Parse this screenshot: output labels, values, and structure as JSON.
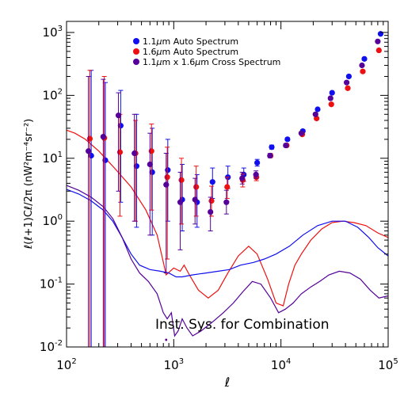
{
  "chart_data": {
    "type": "scatter",
    "xscale": "log",
    "yscale": "log",
    "xlim": [
      100,
      100000
    ],
    "ylim": [
      0.01,
      1500
    ],
    "xlabel": "ℓ",
    "ylabel": "ℓ(ℓ+1)Cℓ/2π   (nW²m⁻⁴sr⁻²)",
    "x_ticks": [
      {
        "value": 100,
        "base": "10",
        "exp": "2"
      },
      {
        "value": 1000,
        "base": "10",
        "exp": "3"
      },
      {
        "value": 10000,
        "base": "10",
        "exp": "4"
      },
      {
        "value": 100000,
        "base": "10",
        "exp": "5"
      }
    ],
    "y_ticks": [
      {
        "value": 0.01,
        "base": "10",
        "exp": "-2"
      },
      {
        "value": 0.1,
        "base": "10",
        "exp": "-1"
      },
      {
        "value": 1,
        "base": "10",
        "exp": "0"
      },
      {
        "value": 10,
        "base": "10",
        "exp": "1"
      },
      {
        "value": 100,
        "base": "10",
        "exp": "2"
      },
      {
        "value": 1000,
        "base": "10",
        "exp": "3"
      }
    ],
    "annotation": "Inst. Sys. for Combination",
    "legend": {
      "placement": "top-left",
      "entries": [
        {
          "label_pre": "1.1",
          "mu": "μ",
          "label_post": "m Auto Spectrum",
          "color": "#1010ee"
        },
        {
          "label_pre": "1.6",
          "mu": "μ",
          "label_post": "m Auto Spectrum",
          "color": "#ee1010"
        },
        {
          "label_pre": "1.1",
          "mu": "μ",
          "label_post": "m x 1.6",
          "mu2": "μ",
          "label_post2": "m Cross Spectrum",
          "color": "#550099"
        }
      ]
    },
    "series": [
      {
        "name": "1.1μm Auto Spectrum",
        "color": "#1010ee",
        "points": [
          {
            "x": 170,
            "y": 11,
            "lo": 0.01,
            "hi": 250
          },
          {
            "x": 230,
            "y": 9.3,
            "lo": 0.01,
            "hi": 160
          },
          {
            "x": 320,
            "y": 33,
            "lo": 2,
            "hi": 120
          },
          {
            "x": 450,
            "y": 7.5,
            "lo": 0.8,
            "hi": 50
          },
          {
            "x": 630,
            "y": 6.0,
            "lo": 0.6,
            "hi": 30
          },
          {
            "x": 880,
            "y": 6.5,
            "lo": 1.0,
            "hi": 20
          },
          {
            "x": 1200,
            "y": 2.2,
            "lo": 0.7,
            "hi": 8
          },
          {
            "x": 1650,
            "y": 2.0,
            "lo": 0.8,
            "hi": 5.5
          },
          {
            "x": 2300,
            "y": 4.2,
            "lo": 2.3,
            "hi": 7
          },
          {
            "x": 3200,
            "y": 5.0,
            "lo": 3.3,
            "hi": 7.5
          },
          {
            "x": 4500,
            "y": 5.5,
            "lo": 4.3,
            "hi": 7
          },
          {
            "x": 6000,
            "y": 8.5,
            "lo": 7.5,
            "hi": 9.6
          },
          {
            "x": 8200,
            "y": 15,
            "lo": 14,
            "hi": 16.2
          },
          {
            "x": 11500,
            "y": 20,
            "lo": 19,
            "hi": 21.2
          },
          {
            "x": 16000,
            "y": 27,
            "lo": 26,
            "hi": 28.5
          },
          {
            "x": 22000,
            "y": 60,
            "lo": 58,
            "hi": 62
          },
          {
            "x": 30000,
            "y": 110,
            "lo": 106,
            "hi": 114
          },
          {
            "x": 43000,
            "y": 200,
            "lo": 194,
            "hi": 206
          },
          {
            "x": 60000,
            "y": 380,
            "lo": 370,
            "hi": 390
          },
          {
            "x": 85000,
            "y": 950,
            "lo": 930,
            "hi": 970
          }
        ]
      },
      {
        "name": "1.6μm Auto Spectrum",
        "color": "#ee1010",
        "points": [
          {
            "x": 165,
            "y": 20.5,
            "lo": 0.01,
            "hi": 250
          },
          {
            "x": 225,
            "y": 21,
            "lo": 0.01,
            "hi": 200
          },
          {
            "x": 315,
            "y": 12.5,
            "lo": 1.2,
            "hi": 50
          },
          {
            "x": 440,
            "y": 12,
            "lo": 1.0,
            "hi": 40
          },
          {
            "x": 620,
            "y": 13,
            "lo": 1.5,
            "hi": 35
          },
          {
            "x": 870,
            "y": 5.0,
            "lo": 0.25,
            "hi": 15
          },
          {
            "x": 1180,
            "y": 4.5,
            "lo": 0.9,
            "hi": 10
          },
          {
            "x": 1620,
            "y": 3.5,
            "lo": 1.2,
            "hi": 7.5
          },
          {
            "x": 2250,
            "y": 2.1,
            "lo": 1.2,
            "hi": 3.6
          },
          {
            "x": 3150,
            "y": 3.5,
            "lo": 2.3,
            "hi": 5
          },
          {
            "x": 4400,
            "y": 4.5,
            "lo": 3.5,
            "hi": 5.6
          },
          {
            "x": 5900,
            "y": 5.0,
            "lo": 4.4,
            "hi": 5.7
          },
          {
            "x": 8000,
            "y": 11,
            "lo": 10.3,
            "hi": 11.8
          },
          {
            "x": 11300,
            "y": 16,
            "lo": 15.2,
            "hi": 16.9
          },
          {
            "x": 15800,
            "y": 24,
            "lo": 23,
            "hi": 25
          },
          {
            "x": 21500,
            "y": 43,
            "lo": 41.5,
            "hi": 44.5
          },
          {
            "x": 29500,
            "y": 72,
            "lo": 70,
            "hi": 74
          },
          {
            "x": 42000,
            "y": 130,
            "lo": 126,
            "hi": 134
          },
          {
            "x": 58000,
            "y": 240,
            "lo": 233,
            "hi": 247
          },
          {
            "x": 82000,
            "y": 520,
            "lo": 505,
            "hi": 535
          }
        ]
      },
      {
        "name": "1.1μm x 1.6μm Cross Spectrum",
        "color": "#550099",
        "points": [
          {
            "x": 160,
            "y": 13,
            "lo": 0.01,
            "hi": 200
          },
          {
            "x": 220,
            "y": 22,
            "lo": 0.01,
            "hi": 180
          },
          {
            "x": 305,
            "y": 48,
            "lo": 3,
            "hi": 110
          },
          {
            "x": 430,
            "y": 12,
            "lo": 1.0,
            "hi": 50
          },
          {
            "x": 600,
            "y": 8.0,
            "lo": 0.6,
            "hi": 25
          },
          {
            "x": 850,
            "y": 3.8,
            "lo": 0.15,
            "hi": 12
          },
          {
            "x": 1150,
            "y": 2.0,
            "lo": 0.35,
            "hi": 6
          },
          {
            "x": 1580,
            "y": 2.2,
            "lo": 0.9,
            "hi": 4.8
          },
          {
            "x": 2200,
            "y": 1.4,
            "lo": 0.7,
            "hi": 2.4
          },
          {
            "x": 3100,
            "y": 2.0,
            "lo": 1.3,
            "hi": 3.1
          },
          {
            "x": 4350,
            "y": 4.8,
            "lo": 3.9,
            "hi": 6
          },
          {
            "x": 5850,
            "y": 5.5,
            "lo": 4.8,
            "hi": 6.3
          },
          {
            "x": 7900,
            "y": 11,
            "lo": 10.2,
            "hi": 11.9
          },
          {
            "x": 11100,
            "y": 16,
            "lo": 15.1,
            "hi": 17
          },
          {
            "x": 15500,
            "y": 25,
            "lo": 24,
            "hi": 26.2
          },
          {
            "x": 21000,
            "y": 50,
            "lo": 48,
            "hi": 52
          },
          {
            "x": 29000,
            "y": 90,
            "lo": 87,
            "hi": 93
          },
          {
            "x": 41000,
            "y": 160,
            "lo": 155,
            "hi": 165
          },
          {
            "x": 57000,
            "y": 300,
            "lo": 291,
            "hi": 309
          },
          {
            "x": 80000,
            "y": 720,
            "lo": 700,
            "hi": 740
          }
        ]
      }
    ],
    "curves": [
      {
        "color": "#ee1010",
        "points": [
          [
            100,
            28
          ],
          [
            120,
            25
          ],
          [
            150,
            20
          ],
          [
            200,
            13
          ],
          [
            280,
            7
          ],
          [
            400,
            3.5
          ],
          [
            550,
            1.5
          ],
          [
            700,
            0.6
          ],
          [
            850,
            0.14
          ],
          [
            1000,
            0.18
          ],
          [
            1150,
            0.16
          ],
          [
            1250,
            0.2
          ],
          [
            1400,
            0.14
          ],
          [
            1700,
            0.08
          ],
          [
            2100,
            0.06
          ],
          [
            2600,
            0.08
          ],
          [
            3200,
            0.15
          ],
          [
            4000,
            0.28
          ],
          [
            5000,
            0.4
          ],
          [
            6000,
            0.3
          ],
          [
            7500,
            0.12
          ],
          [
            9000,
            0.05
          ],
          [
            10500,
            0.045
          ],
          [
            11800,
            0.1
          ],
          [
            13500,
            0.2
          ],
          [
            15500,
            0.3
          ],
          [
            19000,
            0.5
          ],
          [
            24000,
            0.75
          ],
          [
            30000,
            0.95
          ],
          [
            38000,
            1.0
          ],
          [
            48000,
            0.95
          ],
          [
            62000,
            0.85
          ],
          [
            80000,
            0.65
          ],
          [
            100000,
            0.55
          ]
        ]
      },
      {
        "color": "#1010ee",
        "points": [
          [
            100,
            3.2
          ],
          [
            130,
            2.7
          ],
          [
            170,
            2.1
          ],
          [
            220,
            1.5
          ],
          [
            270,
            1.0
          ],
          [
            330,
            0.55
          ],
          [
            400,
            0.3
          ],
          [
            480,
            0.2
          ],
          [
            600,
            0.17
          ],
          [
            750,
            0.16
          ],
          [
            900,
            0.15
          ],
          [
            1050,
            0.13
          ],
          [
            1200,
            0.13
          ],
          [
            1500,
            0.14
          ],
          [
            2000,
            0.15
          ],
          [
            2600,
            0.16
          ],
          [
            3300,
            0.17
          ],
          [
            4200,
            0.2
          ],
          [
            5500,
            0.22
          ],
          [
            7000,
            0.25
          ],
          [
            9000,
            0.3
          ],
          [
            12000,
            0.4
          ],
          [
            16000,
            0.6
          ],
          [
            22000,
            0.85
          ],
          [
            30000,
            1.0
          ],
          [
            40000,
            1.0
          ],
          [
            52000,
            0.8
          ],
          [
            66000,
            0.55
          ],
          [
            80000,
            0.38
          ],
          [
            100000,
            0.28
          ]
        ]
      },
      {
        "color": "#550099",
        "points": [
          [
            100,
            3.7
          ],
          [
            130,
            3.1
          ],
          [
            170,
            2.4
          ],
          [
            220,
            1.7
          ],
          [
            270,
            1.1
          ],
          [
            330,
            0.55
          ],
          [
            400,
            0.25
          ],
          [
            480,
            0.15
          ],
          [
            580,
            0.11
          ],
          [
            700,
            0.07
          ],
          [
            800,
            0.035
          ],
          [
            870,
            0.028
          ],
          [
            950,
            0.035
          ],
          [
            1020,
            0.015
          ],
          [
            1100,
            0.018
          ],
          [
            1200,
            0.028
          ],
          [
            1330,
            0.02
          ],
          [
            1500,
            0.015
          ],
          [
            1800,
            0.018
          ],
          [
            2300,
            0.025
          ],
          [
            2900,
            0.035
          ],
          [
            3600,
            0.05
          ],
          [
            4400,
            0.075
          ],
          [
            5400,
            0.11
          ],
          [
            6500,
            0.1
          ],
          [
            8000,
            0.06
          ],
          [
            9500,
            0.035
          ],
          [
            11000,
            0.04
          ],
          [
            13000,
            0.05
          ],
          [
            15500,
            0.07
          ],
          [
            19000,
            0.09
          ],
          [
            23000,
            0.11
          ],
          [
            28000,
            0.14
          ],
          [
            35000,
            0.16
          ],
          [
            44000,
            0.15
          ],
          [
            55000,
            0.12
          ],
          [
            68000,
            0.08
          ],
          [
            82000,
            0.06
          ],
          [
            100000,
            0.065
          ]
        ]
      }
    ],
    "extra_points": [
      {
        "x": 850,
        "y": 0.013,
        "color": "#550099"
      }
    ]
  }
}
